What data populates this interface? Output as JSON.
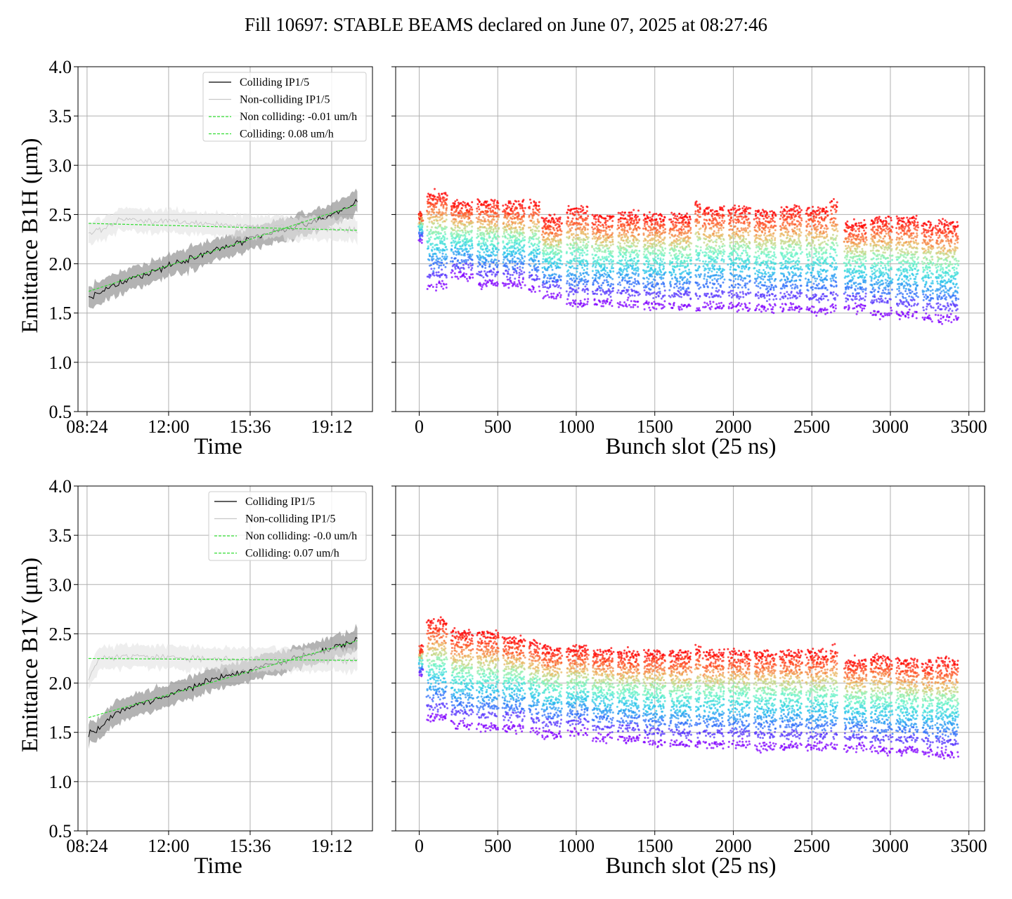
{
  "figure": {
    "title": "Fill 10697: STABLE BEAMS declared on June 07, 2025 at 08:27:46"
  },
  "chart_data": [
    {
      "id": "b1h-time",
      "type": "line",
      "xlabel": "Time",
      "ylabel": "Emittance B1H (μm)",
      "ylim": [
        0.5,
        4.0
      ],
      "yticks": [
        0.5,
        1.0,
        1.5,
        2.0,
        2.5,
        3.0,
        3.5,
        4.0
      ],
      "x_tick_labels": [
        "08:24",
        "12:00",
        "15:36",
        "19:12"
      ],
      "x_range_hours": [
        "08:00",
        "21:00"
      ],
      "grid": true,
      "legend_position": "top-right",
      "series": [
        {
          "name": "Colliding IP1/5",
          "color": "#000000",
          "band_color": "#999999",
          "x": [
            "08:28",
            "10:00",
            "12:00",
            "14:00",
            "16:00",
            "18:00",
            "19:00",
            "20:20"
          ],
          "values": [
            1.65,
            1.82,
            1.98,
            2.13,
            2.28,
            2.4,
            2.48,
            2.62
          ]
        },
        {
          "name": "Non-colliding IP1/5",
          "color": "#c8c8c8",
          "band_color": "#e3e3e3",
          "x": [
            "08:28",
            "10:00",
            "12:00",
            "14:00",
            "16:00",
            "18:00",
            "20:20"
          ],
          "values": [
            2.3,
            2.45,
            2.43,
            2.4,
            2.37,
            2.35,
            2.35
          ]
        },
        {
          "name": "Non colliding: -0.01 um/h",
          "color": "#33dd33",
          "style": "dashed",
          "x": [
            "08:28",
            "20:20"
          ],
          "values": [
            2.41,
            2.34
          ]
        },
        {
          "name": "Colliding: 0.08 um/h",
          "color": "#33dd33",
          "style": "dashed",
          "x": [
            "08:28",
            "20:20"
          ],
          "values": [
            1.72,
            2.6
          ]
        }
      ]
    },
    {
      "id": "b1h-bunch",
      "type": "scatter",
      "xlabel": "Bunch slot (25 ns)",
      "ylim": [
        0.5,
        4.0
      ],
      "xlim": [
        -150,
        3600
      ],
      "xticks": [
        0,
        500,
        1000,
        1500,
        2000,
        2500,
        3000,
        3500
      ],
      "grid": true,
      "color_by_time": "rainbow (violet = early, red = late)",
      "trains": [
        {
          "start": 0,
          "end": 20,
          "low": 2.25,
          "high": 2.5
        },
        {
          "start": 50,
          "end": 175,
          "low": 1.78,
          "high": 2.7
        },
        {
          "start": 205,
          "end": 340,
          "low": 1.88,
          "high": 2.6
        },
        {
          "start": 370,
          "end": 505,
          "low": 1.8,
          "high": 2.62
        },
        {
          "start": 535,
          "end": 670,
          "low": 1.8,
          "high": 2.6
        },
        {
          "start": 700,
          "end": 765,
          "low": 1.75,
          "high": 2.62
        },
        {
          "start": 785,
          "end": 905,
          "low": 1.68,
          "high": 2.45
        },
        {
          "start": 940,
          "end": 1075,
          "low": 1.6,
          "high": 2.55
        },
        {
          "start": 1105,
          "end": 1235,
          "low": 1.6,
          "high": 2.48
        },
        {
          "start": 1265,
          "end": 1400,
          "low": 1.6,
          "high": 2.5
        },
        {
          "start": 1430,
          "end": 1565,
          "low": 1.58,
          "high": 2.48
        },
        {
          "start": 1595,
          "end": 1730,
          "low": 1.57,
          "high": 2.48
        },
        {
          "start": 1760,
          "end": 1790,
          "low": 1.55,
          "high": 2.62
        },
        {
          "start": 1810,
          "end": 1940,
          "low": 1.57,
          "high": 2.55
        },
        {
          "start": 1970,
          "end": 2105,
          "low": 1.57,
          "high": 2.55
        },
        {
          "start": 2135,
          "end": 2270,
          "low": 1.55,
          "high": 2.52
        },
        {
          "start": 2300,
          "end": 2435,
          "low": 1.55,
          "high": 2.55
        },
        {
          "start": 2465,
          "end": 2600,
          "low": 1.53,
          "high": 2.55
        },
        {
          "start": 2620,
          "end": 2660,
          "low": 1.55,
          "high": 2.62
        },
        {
          "start": 2710,
          "end": 2845,
          "low": 1.55,
          "high": 2.4
        },
        {
          "start": 2875,
          "end": 3010,
          "low": 1.5,
          "high": 2.45
        },
        {
          "start": 3040,
          "end": 3175,
          "low": 1.48,
          "high": 2.45
        },
        {
          "start": 3205,
          "end": 3270,
          "low": 1.45,
          "high": 2.4
        },
        {
          "start": 3290,
          "end": 3430,
          "low": 1.44,
          "high": 2.4
        }
      ]
    },
    {
      "id": "b1v-time",
      "type": "line",
      "xlabel": "Time",
      "ylabel": "Emittance B1V (μm)",
      "ylim": [
        0.5,
        4.0
      ],
      "yticks": [
        0.5,
        1.0,
        1.5,
        2.0,
        2.5,
        3.0,
        3.5,
        4.0
      ],
      "x_tick_labels": [
        "08:24",
        "12:00",
        "15:36",
        "19:12"
      ],
      "x_range_hours": [
        "08:00",
        "21:00"
      ],
      "grid": true,
      "legend_position": "top-right",
      "series": [
        {
          "name": "Colliding IP1/5",
          "color": "#000000",
          "band_color": "#999999",
          "x": [
            "08:28",
            "10:00",
            "12:00",
            "14:00",
            "16:00",
            "18:00",
            "19:00",
            "20:20"
          ],
          "values": [
            1.48,
            1.74,
            1.88,
            2.04,
            2.16,
            2.28,
            2.34,
            2.44
          ]
        },
        {
          "name": "Non-colliding IP1/5",
          "color": "#c8c8c8",
          "band_color": "#e3e3e3",
          "x": [
            "08:28",
            "09:00",
            "10:00",
            "12:00",
            "14:00",
            "16:00",
            "18:00",
            "20:20"
          ],
          "values": [
            2.05,
            2.27,
            2.27,
            2.26,
            2.25,
            2.24,
            2.24,
            2.23
          ]
        },
        {
          "name": "Non colliding: -0.0 um/h",
          "color": "#33dd33",
          "style": "dashed",
          "x": [
            "08:28",
            "20:20"
          ],
          "values": [
            2.25,
            2.23
          ]
        },
        {
          "name": "Colliding: 0.07 um/h",
          "color": "#33dd33",
          "style": "dashed",
          "x": [
            "08:28",
            "20:20"
          ],
          "values": [
            1.65,
            2.43
          ]
        }
      ]
    },
    {
      "id": "b1v-bunch",
      "type": "scatter",
      "xlabel": "Bunch slot (25 ns)",
      "ylim": [
        0.5,
        4.0
      ],
      "xlim": [
        -150,
        3600
      ],
      "xticks": [
        0,
        500,
        1000,
        1500,
        2000,
        2500,
        3000,
        3500
      ],
      "grid": true,
      "color_by_time": "rainbow (violet = early, red = late)",
      "trains": [
        {
          "start": 0,
          "end": 20,
          "low": 2.1,
          "high": 2.35
        },
        {
          "start": 50,
          "end": 175,
          "low": 1.65,
          "high": 2.62
        },
        {
          "start": 205,
          "end": 340,
          "low": 1.58,
          "high": 2.5
        },
        {
          "start": 370,
          "end": 505,
          "low": 1.55,
          "high": 2.5
        },
        {
          "start": 535,
          "end": 670,
          "low": 1.55,
          "high": 2.45
        },
        {
          "start": 700,
          "end": 765,
          "low": 1.52,
          "high": 2.4
        },
        {
          "start": 785,
          "end": 905,
          "low": 1.48,
          "high": 2.35
        },
        {
          "start": 940,
          "end": 1075,
          "low": 1.5,
          "high": 2.35
        },
        {
          "start": 1105,
          "end": 1235,
          "low": 1.44,
          "high": 2.32
        },
        {
          "start": 1265,
          "end": 1400,
          "low": 1.44,
          "high": 2.3
        },
        {
          "start": 1430,
          "end": 1565,
          "low": 1.4,
          "high": 2.3
        },
        {
          "start": 1595,
          "end": 1730,
          "low": 1.38,
          "high": 2.3
        },
        {
          "start": 1760,
          "end": 1790,
          "low": 1.38,
          "high": 2.35
        },
        {
          "start": 1810,
          "end": 1940,
          "low": 1.38,
          "high": 2.3
        },
        {
          "start": 1970,
          "end": 2105,
          "low": 1.38,
          "high": 2.3
        },
        {
          "start": 2135,
          "end": 2270,
          "low": 1.36,
          "high": 2.3
        },
        {
          "start": 2300,
          "end": 2435,
          "low": 1.36,
          "high": 2.3
        },
        {
          "start": 2465,
          "end": 2600,
          "low": 1.35,
          "high": 2.3
        },
        {
          "start": 2620,
          "end": 2660,
          "low": 1.35,
          "high": 2.35
        },
        {
          "start": 2710,
          "end": 2845,
          "low": 1.35,
          "high": 2.22
        },
        {
          "start": 2875,
          "end": 3010,
          "low": 1.32,
          "high": 2.25
        },
        {
          "start": 3040,
          "end": 3175,
          "low": 1.32,
          "high": 2.22
        },
        {
          "start": 3205,
          "end": 3270,
          "low": 1.3,
          "high": 2.2
        },
        {
          "start": 3290,
          "end": 3430,
          "low": 1.28,
          "high": 2.22
        }
      ]
    }
  ]
}
